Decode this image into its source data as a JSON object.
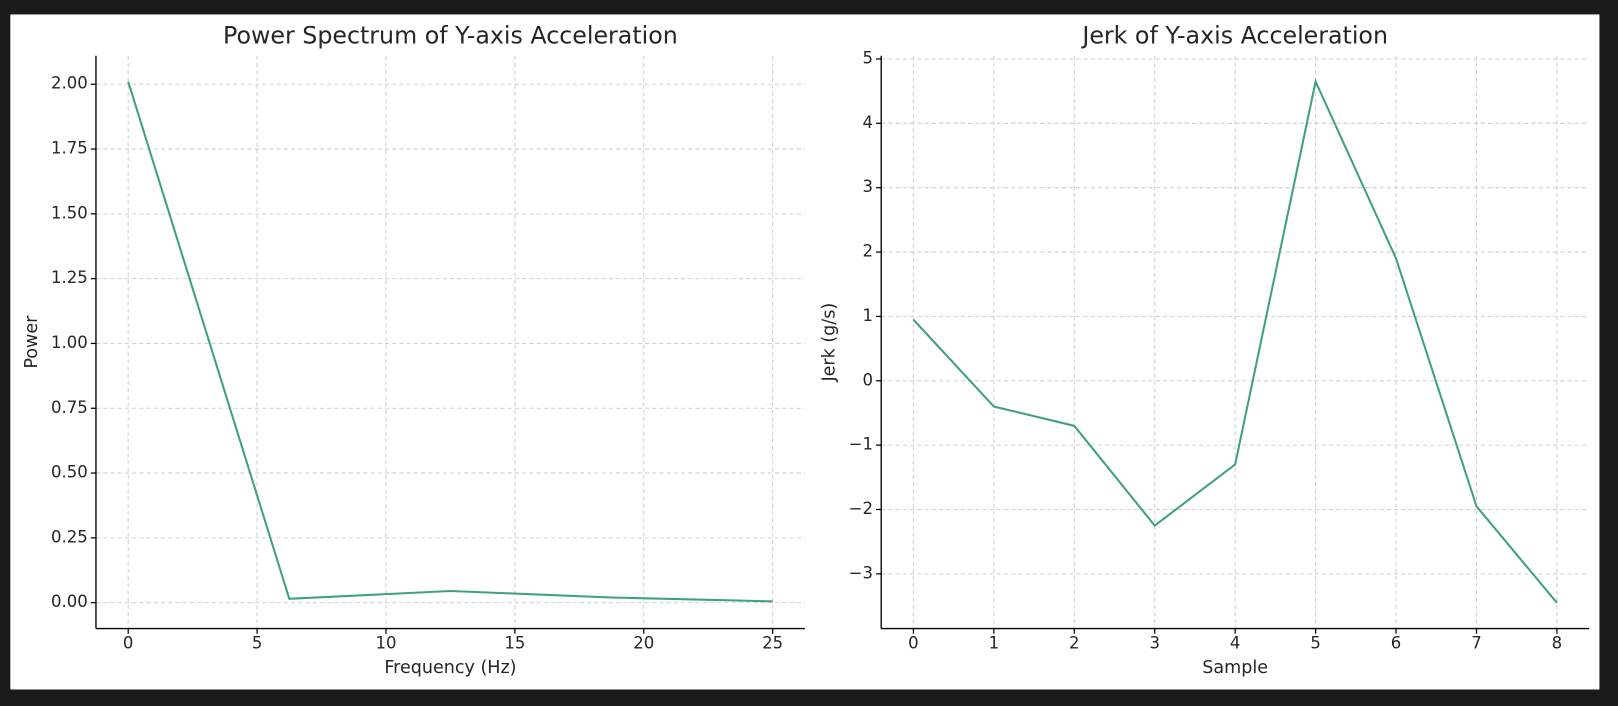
{
  "chart_data": [
    {
      "type": "line",
      "title": "Power Spectrum of Y-axis Acceleration",
      "xlabel": "Frequency (Hz)",
      "ylabel": "Power",
      "x": [
        0,
        6.25,
        12.5,
        18.75,
        25
      ],
      "series": [
        {
          "name": "Power",
          "color": "#40a080",
          "values": [
            2.01,
            0.015,
            0.045,
            0.02,
            0.005
          ]
        }
      ],
      "xlim": [
        -1.25,
        26.25
      ],
      "xticks": [
        0,
        5,
        10,
        15,
        20,
        25
      ],
      "ylim": [
        -0.1,
        2.11
      ],
      "yticks": [
        {
          "value": 0,
          "label": "0.00"
        },
        0.25,
        {
          "value": 0.5,
          "label": "0.50"
        },
        0.75,
        {
          "value": 1,
          "label": "1.00"
        },
        1.25,
        {
          "value": 1.5,
          "label": "1.50"
        },
        1.75,
        {
          "value": 2,
          "label": "2.00"
        }
      ],
      "grid": true
    },
    {
      "type": "line",
      "title": "Jerk of Y-axis Acceleration",
      "xlabel": "Sample",
      "ylabel": "Jerk (g/s)",
      "x": [
        0,
        1,
        2,
        3,
        4,
        5,
        6,
        7,
        8
      ],
      "series": [
        {
          "name": "Jerk",
          "color": "#40a080",
          "values": [
            0.95,
            -0.4,
            -0.7,
            -2.25,
            -1.3,
            4.65,
            1.9,
            -1.95,
            -3.45
          ]
        }
      ],
      "xlim": [
        -0.4,
        8.4
      ],
      "xticks": [
        0,
        1,
        2,
        3,
        4,
        5,
        6,
        7,
        8
      ],
      "ylim": [
        -3.85,
        5.05
      ],
      "yticks": [
        {
          "value": -3,
          "label": "−3"
        },
        {
          "value": -2,
          "label": "−2"
        },
        {
          "value": -1,
          "label": "−1"
        },
        0,
        1,
        2,
        3,
        4,
        5
      ],
      "grid": true
    }
  ]
}
